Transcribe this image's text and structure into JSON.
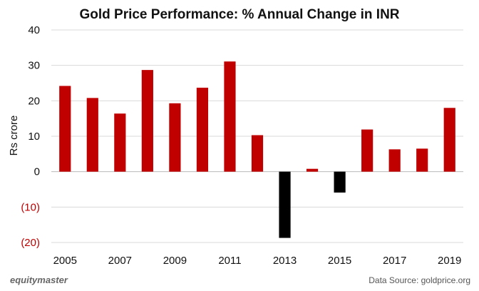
{
  "chart_data": {
    "type": "bar",
    "title": "Gold Price Performance: % Annual Change in INR",
    "ylabel": "Rs crore",
    "xlabel": "",
    "categories": [
      "2005",
      "2006",
      "2007",
      "2008",
      "2009",
      "2010",
      "2011",
      "2012",
      "2013",
      "2014",
      "2015",
      "2016",
      "2017",
      "2018",
      "2019"
    ],
    "x_tick_labels": [
      "2005",
      "",
      "2007",
      "",
      "2009",
      "",
      "2011",
      "",
      "2013",
      "",
      "2015",
      "",
      "2017",
      "",
      "2019"
    ],
    "values": [
      24.2,
      20.8,
      16.4,
      28.7,
      19.3,
      23.7,
      31.1,
      10.3,
      -18.7,
      0.8,
      -5.9,
      11.9,
      6.3,
      6.5,
      18.0
    ],
    "ylim": [
      -20,
      40
    ],
    "y_ticks": [
      40,
      30,
      20,
      10,
      0,
      -10,
      -20
    ],
    "y_tick_labels": [
      "40",
      "30",
      "20",
      "10",
      "0",
      "(10)",
      "(20)"
    ],
    "grid": true,
    "colors": {
      "positive": "#C00000",
      "negative": "#000000",
      "negative_label": "#C00000",
      "grid": "#d9d9d9"
    }
  },
  "footer": {
    "brand": "equitymaster",
    "source": "Data Source: goldprice.org"
  }
}
